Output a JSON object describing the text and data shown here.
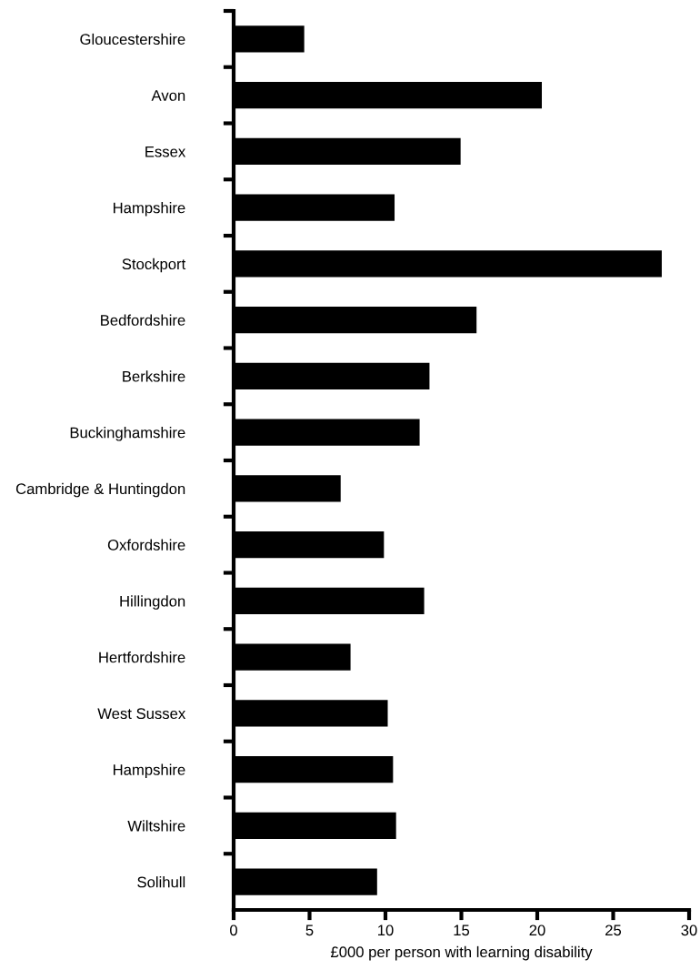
{
  "chart_data": {
    "type": "bar",
    "orientation": "horizontal",
    "xlabel": "£000 per person with learning disability",
    "categories": [
      "Gloucestershire",
      "Avon",
      "Essex",
      "Hampshire",
      "Stockport",
      "Bedfordshire",
      "Berkshire",
      "Buckinghamshire",
      "Cambridge & Huntingdon",
      "Oxfordshire",
      "Hillingdon",
      "Hertfordshire",
      "West Sussex",
      "Hampshire",
      "Wiltshire",
      "Solihull"
    ],
    "values": [
      4.65,
      20.3,
      14.95,
      10.6,
      28.2,
      16.0,
      12.9,
      12.25,
      7.05,
      9.9,
      12.55,
      7.7,
      10.15,
      10.5,
      10.7,
      9.45
    ],
    "color": "#000000",
    "xlim": [
      0,
      30
    ],
    "xticks": [
      0,
      5,
      10,
      15,
      20,
      25,
      30
    ],
    "grid": false
  }
}
